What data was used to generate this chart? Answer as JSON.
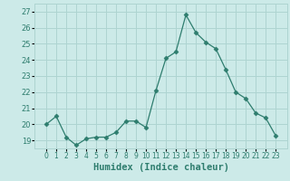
{
  "x": [
    0,
    1,
    2,
    3,
    4,
    5,
    6,
    7,
    8,
    9,
    10,
    11,
    12,
    13,
    14,
    15,
    16,
    17,
    18,
    19,
    20,
    21,
    22,
    23
  ],
  "y": [
    20.0,
    20.5,
    19.2,
    18.7,
    19.1,
    19.2,
    19.2,
    19.5,
    20.2,
    20.2,
    19.8,
    22.1,
    24.1,
    24.5,
    26.8,
    25.7,
    25.1,
    24.7,
    23.4,
    22.0,
    21.6,
    20.7,
    20.4,
    19.3
  ],
  "line_color": "#2e7d6e",
  "marker": "D",
  "marker_size": 2.5,
  "bg_color": "#cceae8",
  "grid_color": "#aed4d1",
  "tick_label_color": "#2e7d6e",
  "xlabel": "Humidex (Indice chaleur)",
  "xlabel_color": "#2e7d6e",
  "ylim": [
    18.5,
    27.5
  ],
  "yticks": [
    19,
    20,
    21,
    22,
    23,
    24,
    25,
    26,
    27
  ],
  "xticks": [
    0,
    1,
    2,
    3,
    4,
    5,
    6,
    7,
    8,
    9,
    10,
    11,
    12,
    13,
    14,
    15,
    16,
    17,
    18,
    19,
    20,
    21,
    22,
    23
  ]
}
